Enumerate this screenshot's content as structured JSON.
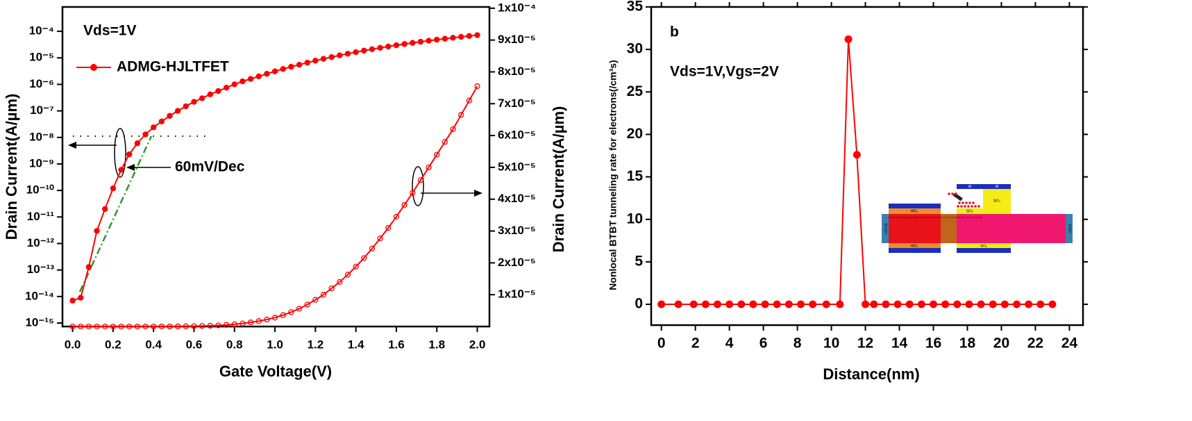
{
  "chart_data": [
    {
      "type": "line",
      "annotations": [
        "Vds=1V",
        "60mV/Dec"
      ],
      "xlabel": "Gate Voltage(V)",
      "ylabel": "Drain Current(A/µm)",
      "y2label": "Drain Current(A/µm)",
      "x": [
        0,
        0.04,
        0.08,
        0.12,
        0.16,
        0.2,
        0.24,
        0.28,
        0.32,
        0.36,
        0.4,
        0.44,
        0.48,
        0.52,
        0.56,
        0.6,
        0.64,
        0.68,
        0.72,
        0.76,
        0.8,
        0.84,
        0.88,
        0.92,
        0.96,
        1,
        1.04,
        1.08,
        1.12,
        1.16,
        1.2,
        1.24,
        1.28,
        1.32,
        1.36,
        1.4,
        1.44,
        1.48,
        1.52,
        1.56,
        1.6,
        1.64,
        1.68,
        1.72,
        1.76,
        1.8,
        1.84,
        1.88,
        1.92,
        1.96,
        2
      ],
      "series": [
        {
          "name": "ADMG-HJLTFET",
          "color": "#ff0000",
          "marker": "filled",
          "values": [
            7e-15,
            9e-15,
            1.3e-13,
            3e-12,
            2e-11,
            1.2e-10,
            6e-10,
            2.3e-09,
            6e-09,
            1.3e-08,
            2.4e-08,
            4e-08,
            6.5e-08,
            1e-07,
            1.5e-07,
            2.2e-07,
            3e-07,
            4.2e-07,
            5.6e-07,
            7.5e-07,
            1e-06,
            1.3e-06,
            1.6e-06,
            2e-06,
            2.5e-06,
            3.1e-06,
            3.8e-06,
            4.6e-06,
            5.5e-06,
            6.6e-06,
            7.8e-06,
            9.2e-06,
            1.07e-05,
            1.24e-05,
            1.43e-05,
            1.64e-05,
            1.87e-05,
            2.12e-05,
            2.39e-05,
            2.68e-05,
            2.99e-05,
            3.32e-05,
            3.67e-05,
            4.04e-05,
            4.43e-05,
            4.84e-05,
            5.27e-05,
            5.72e-05,
            6.19e-05,
            6.68e-05,
            7.2e-05
          ]
        },
        {
          "color": "#ff0000",
          "marker": "open",
          "axis": "y2",
          "values": [
            0,
            0,
            0,
            0,
            0,
            0,
            0,
            0,
            0,
            0,
            0,
            1e-08,
            2e-08,
            4e-08,
            7e-08,
            1.1e-07,
            1.7e-07,
            2.5e-07,
            3.6e-07,
            5e-07,
            7e-07,
            9.5e-07,
            1.3e-06,
            1.7e-06,
            2.2e-06,
            2.8e-06,
            3.6e-06,
            4.5e-06,
            5.6e-06,
            6.9e-06,
            8.4e-06,
            1e-05,
            1.2e-05,
            1.4e-05,
            1.63e-05,
            1.88e-05,
            2.15e-05,
            2.45e-05,
            2.77e-05,
            3.1e-05,
            3.45e-05,
            3.82e-05,
            4.2e-05,
            4.6e-05,
            5e-05,
            5.4e-05,
            5.8e-05,
            6.2e-05,
            6.65e-05,
            7.1e-05,
            7.55e-05
          ]
        }
      ],
      "xlim": [
        -0.05,
        2.06
      ],
      "ylim": [
        7.4e-16,
        0.00083
      ],
      "y2lim": [
        0,
        0.0001004
      ],
      "yscale": "log",
      "legend": "upper left",
      "xticks": [
        {
          "value": 0,
          "label": "0.0"
        },
        0.2,
        0.4,
        0.6,
        0.8,
        {
          "value": 1,
          "label": "1.0"
        },
        1.2,
        1.4,
        1.6,
        1.8,
        {
          "value": 2,
          "label": "2.0"
        }
      ],
      "yticks": [
        {
          "value": 1e-15,
          "label": "10⁻¹⁵"
        },
        {
          "value": 1e-14,
          "label": "10⁻¹⁴"
        },
        {
          "value": 1e-13,
          "label": "10⁻¹³"
        },
        {
          "value": 1e-12,
          "label": "10⁻¹²"
        },
        {
          "value": 1e-11,
          "label": "10⁻¹¹"
        },
        {
          "value": 1e-10,
          "label": "10⁻¹⁰"
        },
        {
          "value": 1e-09,
          "label": "10⁻⁹"
        },
        {
          "value": 1e-08,
          "label": "10⁻⁸"
        },
        {
          "value": 1e-07,
          "label": "10⁻⁷"
        },
        {
          "value": 1e-06,
          "label": "10⁻⁶"
        },
        {
          "value": 1e-05,
          "label": "10⁻⁵"
        },
        {
          "value": 0.0001,
          "label": "10⁻⁴"
        }
      ],
      "y2ticks": [
        {
          "value": 1e-05,
          "label": "1x10⁻⁵"
        },
        {
          "value": 2e-05,
          "label": "2x10⁻⁵"
        },
        {
          "value": 3e-05,
          "label": "3x10⁻⁵"
        },
        {
          "value": 4e-05,
          "label": "4x10⁻⁵"
        },
        {
          "value": 5e-05,
          "label": "5x10⁻⁵"
        },
        {
          "value": 6e-05,
          "label": "6x10⁻⁵"
        },
        {
          "value": 7e-05,
          "label": "7x10⁻⁵"
        },
        {
          "value": 8e-05,
          "label": "8x10⁻⁵"
        },
        {
          "value": 9e-05,
          "label": "9x10⁻⁵"
        },
        {
          "value": 0.0001,
          "label": "1x10⁻⁴"
        }
      ]
    },
    {
      "type": "line",
      "panel_label": "b",
      "annotation": "Vds=1V,Vgs=2V",
      "xlabel": "Distance(nm)",
      "ylabel": "Nonlocal BTBT tunneling rate for electrons(/cm³s)",
      "x": [
        0,
        1,
        1.9,
        2.6,
        3.3,
        4,
        4.7,
        5.4,
        6.1,
        6.8,
        7.5,
        8.2,
        8.9,
        9.7,
        10.5,
        11,
        11.5,
        12,
        12.5,
        13.2,
        13.9,
        14.6,
        15.3,
        16,
        16.7,
        17.4,
        18.1,
        18.8,
        19.5,
        20.2,
        20.9,
        21.6,
        22.3,
        23
      ],
      "series": [
        {
          "color": "#ff0000",
          "marker": "filled",
          "values": [
            0,
            0,
            0,
            0,
            0,
            0,
            0,
            0,
            0,
            0,
            0,
            0,
            0,
            0,
            0,
            31.2,
            17.6,
            0,
            0,
            0,
            0,
            0,
            0,
            0,
            0,
            0,
            0,
            0,
            0,
            0,
            0,
            0,
            0,
            0
          ]
        }
      ],
      "xlim": [
        -0.6,
        24.8
      ],
      "ylim": [
        -2.45,
        35
      ],
      "xticks": [
        0,
        2,
        4,
        6,
        8,
        10,
        12,
        14,
        16,
        18,
        20,
        22,
        24
      ],
      "yticks": [
        0,
        5,
        10,
        15,
        20,
        25,
        30,
        35
      ],
      "inset": {
        "labels": [
          "Source",
          "Drain",
          "HfO₂",
          "HfO₂",
          "SiO₂",
          "SiO₂",
          "SiO₂",
          "Al",
          "Al"
        ]
      }
    }
  ]
}
